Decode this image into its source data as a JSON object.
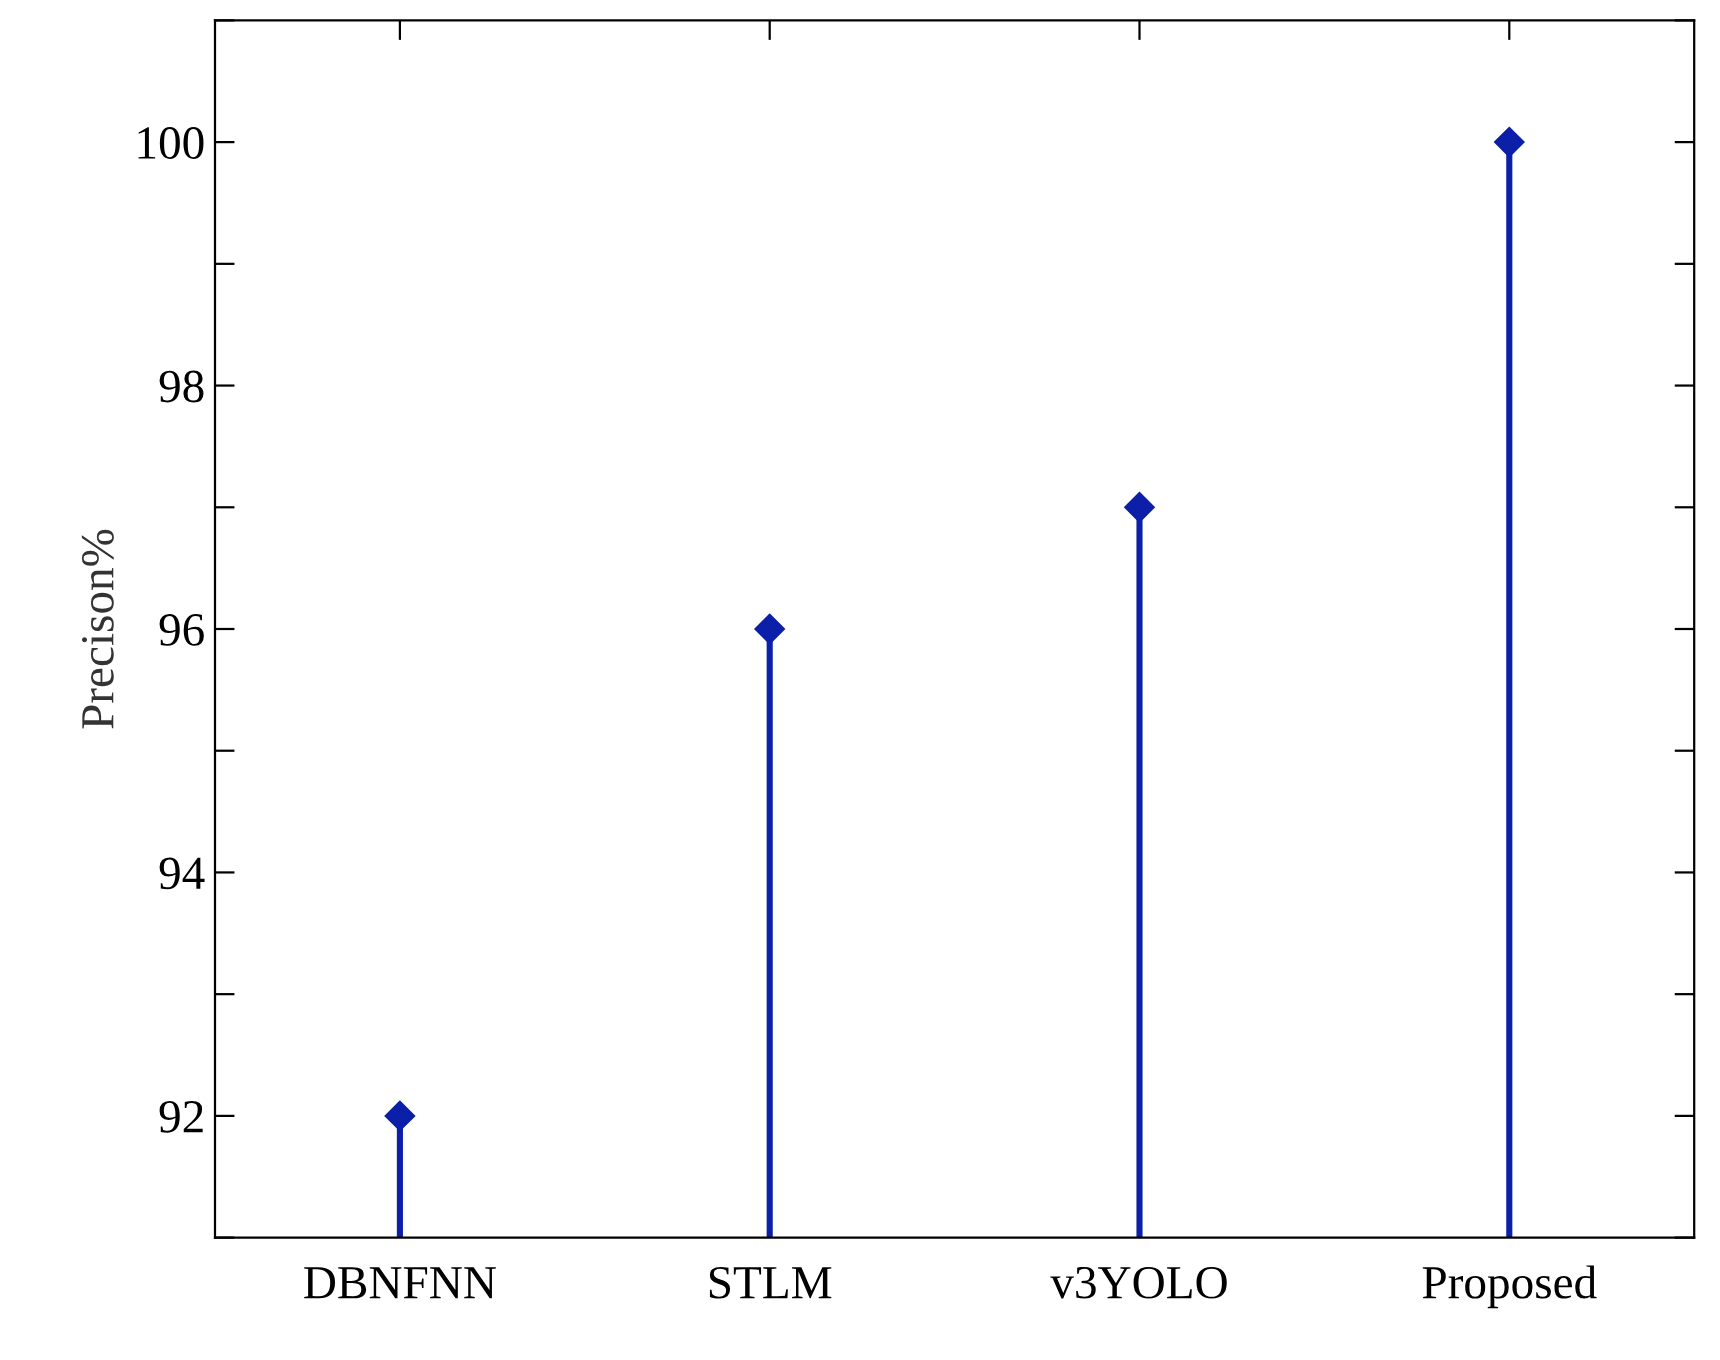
{
  "chart_data": {
    "type": "lollipop",
    "ylabel": "Precison%",
    "categories": [
      "DBNFNN",
      "STLM",
      "v3YOLO",
      "Proposed"
    ],
    "values": [
      92,
      96,
      97,
      100
    ],
    "color": "#0b1fa8",
    "marker": "diamond",
    "ylim": [
      91,
      101
    ],
    "yticks": [
      {
        "value": 91,
        "label": null
      },
      92,
      {
        "value": 93,
        "label": null
      },
      94,
      {
        "value": 95,
        "label": null
      },
      96,
      {
        "value": 97,
        "label": null
      },
      98,
      {
        "value": 99,
        "label": null
      },
      100,
      {
        "value": 101,
        "label": null
      }
    ],
    "grid": false,
    "legend": false
  }
}
